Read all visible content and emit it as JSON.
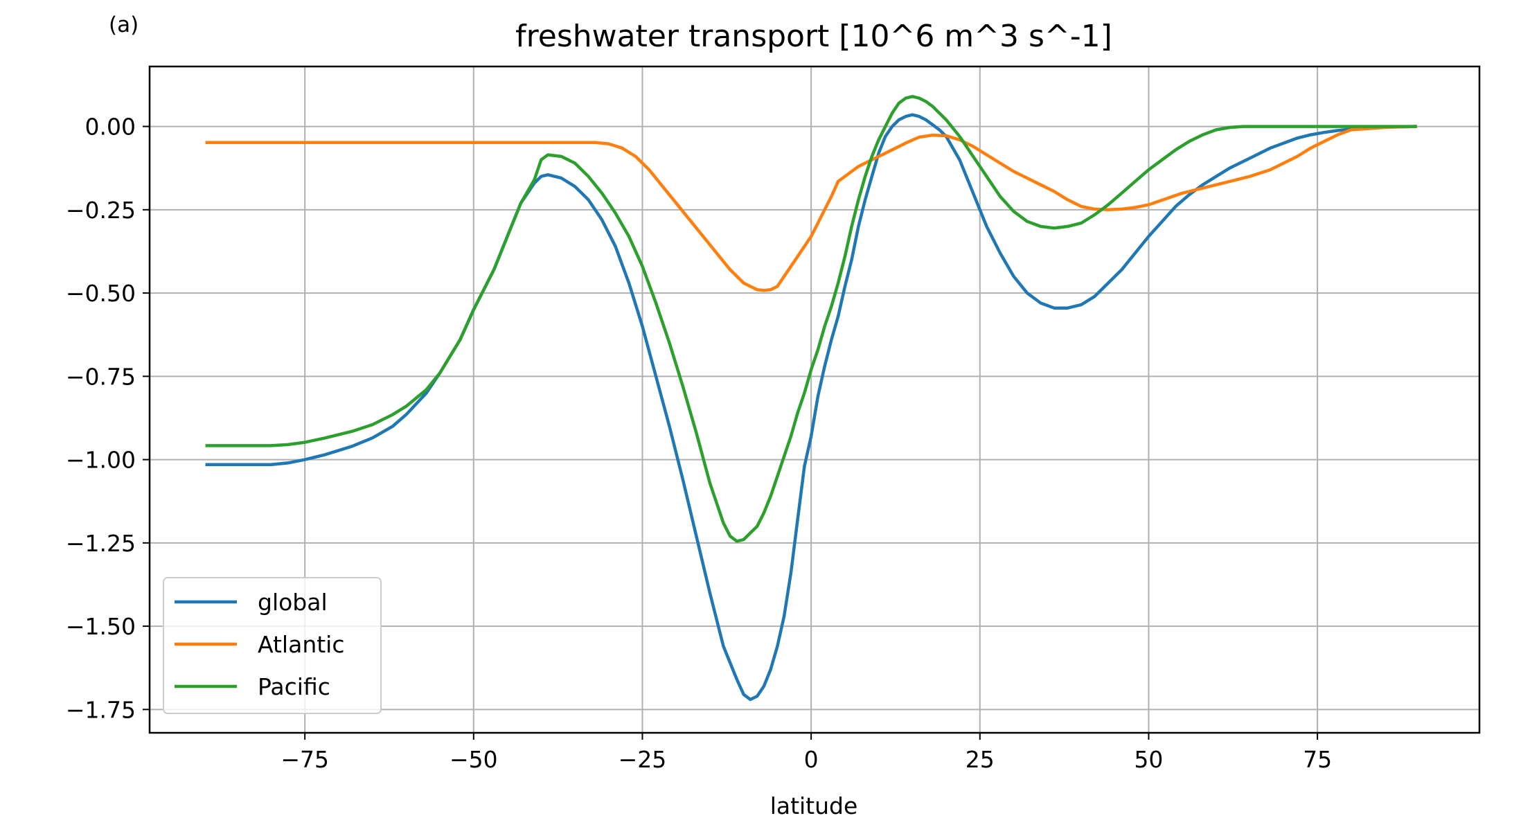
{
  "panel_label": "(a)",
  "chart_data": {
    "type": "line",
    "title": "freshwater transport [10^6 m^3 s^-1]",
    "xlabel": "latitude",
    "ylabel": "",
    "xlim": [
      -98,
      99
    ],
    "ylim": [
      -1.82,
      0.18
    ],
    "xticks": [
      -75,
      -50,
      -25,
      0,
      25,
      50,
      75
    ],
    "xtick_labels": [
      "−75",
      "−50",
      "−25",
      "0",
      "25",
      "50",
      "75"
    ],
    "yticks": [
      0.0,
      -0.25,
      -0.5,
      -0.75,
      -1.0,
      -1.25,
      -1.5,
      -1.75
    ],
    "ytick_labels": [
      "0.00",
      "−0.25",
      "−0.50",
      "−0.75",
      "−1.00",
      "−1.25",
      "−1.50",
      "−1.75"
    ],
    "grid": true,
    "legend_position": "lower-left",
    "series": [
      {
        "name": "global",
        "color": "#1f77b4",
        "x": [
          -89.5,
          -85,
          -80,
          -77.5,
          -75,
          -72,
          -68,
          -65,
          -62,
          -60,
          -57,
          -55,
          -52,
          -50,
          -47,
          -45,
          -43,
          -41,
          -40,
          -39,
          -37,
          -35,
          -33,
          -31,
          -29,
          -27,
          -25,
          -23,
          -21,
          -19,
          -17,
          -15,
          -13,
          -11,
          -10,
          -9,
          -8,
          -7,
          -6,
          -5,
          -4,
          -3,
          -2,
          -1,
          0,
          1,
          2,
          3,
          4,
          5,
          6,
          7,
          8,
          9,
          10,
          11,
          12,
          13,
          14,
          15,
          16,
          17,
          18,
          19,
          20,
          22,
          24,
          26,
          28,
          30,
          32,
          34,
          36,
          38,
          39,
          40,
          42,
          44,
          46,
          48,
          50,
          52,
          54,
          56,
          58,
          60,
          62,
          64,
          66,
          68,
          70,
          72,
          74,
          76,
          78,
          80,
          82,
          85,
          89.5
        ],
        "y": [
          -1.015,
          -1.015,
          -1.015,
          -1.01,
          -1.0,
          -0.985,
          -0.96,
          -0.935,
          -0.9,
          -0.865,
          -0.8,
          -0.74,
          -0.64,
          -0.55,
          -0.43,
          -0.33,
          -0.23,
          -0.17,
          -0.15,
          -0.145,
          -0.155,
          -0.18,
          -0.22,
          -0.28,
          -0.36,
          -0.47,
          -0.6,
          -0.75,
          -0.9,
          -1.06,
          -1.23,
          -1.4,
          -1.56,
          -1.66,
          -1.705,
          -1.72,
          -1.71,
          -1.68,
          -1.63,
          -1.56,
          -1.47,
          -1.34,
          -1.18,
          -1.02,
          -0.93,
          -0.81,
          -0.72,
          -0.64,
          -0.57,
          -0.48,
          -0.4,
          -0.3,
          -0.22,
          -0.15,
          -0.08,
          -0.03,
          0.0,
          0.02,
          0.03,
          0.035,
          0.03,
          0.02,
          0.005,
          -0.01,
          -0.03,
          -0.1,
          -0.2,
          -0.3,
          -0.38,
          -0.45,
          -0.5,
          -0.53,
          -0.545,
          -0.545,
          -0.54,
          -0.535,
          -0.51,
          -0.47,
          -0.43,
          -0.38,
          -0.33,
          -0.285,
          -0.24,
          -0.205,
          -0.175,
          -0.15,
          -0.125,
          -0.105,
          -0.085,
          -0.065,
          -0.05,
          -0.035,
          -0.025,
          -0.018,
          -0.012,
          -0.008,
          -0.005,
          -0.002,
          0.0
        ]
      },
      {
        "name": "Atlantic",
        "color": "#ff7f0e",
        "x": [
          -89.5,
          -80,
          -70,
          -60,
          -50,
          -40,
          -35,
          -32,
          -30,
          -28,
          -26,
          -24,
          -22,
          -20,
          -18,
          -16,
          -14,
          -12,
          -10,
          -9,
          -8,
          -7,
          -6,
          -5,
          -4,
          -3,
          -2,
          -1,
          0,
          1,
          2,
          3,
          4,
          5,
          6,
          7,
          8,
          10,
          12,
          14,
          16,
          18,
          20,
          22,
          24,
          26,
          28,
          30,
          32,
          34,
          36,
          38,
          40,
          42,
          44,
          46,
          48,
          50,
          55,
          60,
          65,
          68,
          70,
          72,
          74,
          76,
          78,
          80,
          85,
          89.5
        ],
        "y": [
          -0.048,
          -0.048,
          -0.048,
          -0.048,
          -0.048,
          -0.048,
          -0.048,
          -0.048,
          -0.052,
          -0.065,
          -0.09,
          -0.13,
          -0.18,
          -0.23,
          -0.28,
          -0.33,
          -0.38,
          -0.43,
          -0.47,
          -0.48,
          -0.49,
          -0.492,
          -0.49,
          -0.48,
          -0.45,
          -0.42,
          -0.39,
          -0.36,
          -0.33,
          -0.29,
          -0.25,
          -0.21,
          -0.165,
          -0.15,
          -0.135,
          -0.12,
          -0.11,
          -0.09,
          -0.07,
          -0.05,
          -0.032,
          -0.026,
          -0.028,
          -0.04,
          -0.06,
          -0.085,
          -0.11,
          -0.135,
          -0.155,
          -0.175,
          -0.195,
          -0.22,
          -0.24,
          -0.248,
          -0.25,
          -0.248,
          -0.243,
          -0.235,
          -0.2,
          -0.175,
          -0.15,
          -0.13,
          -0.11,
          -0.09,
          -0.065,
          -0.045,
          -0.025,
          -0.01,
          -0.003,
          0.0
        ]
      },
      {
        "name": "Pacific",
        "color": "#2ca02c",
        "x": [
          -89.5,
          -80,
          -77.5,
          -75,
          -72,
          -68,
          -65,
          -62,
          -60,
          -57,
          -55,
          -52,
          -50,
          -47,
          -45,
          -43,
          -41,
          -40,
          -39,
          -37,
          -35,
          -33,
          -31,
          -29,
          -27,
          -25,
          -23,
          -21,
          -19,
          -17,
          -15,
          -13,
          -12,
          -11,
          -10,
          -9,
          -8,
          -7,
          -6,
          -5,
          -4,
          -3,
          -2,
          -1,
          0,
          1,
          2,
          3,
          4,
          5,
          6,
          7,
          8,
          9,
          10,
          11,
          12,
          13,
          14,
          15,
          16,
          17,
          18,
          19,
          20,
          22,
          24,
          26,
          28,
          30,
          32,
          34,
          36,
          38,
          40,
          42,
          44,
          46,
          48,
          50,
          52,
          54,
          56,
          58,
          60,
          62,
          64,
          70,
          80,
          89.5
        ],
        "y": [
          -0.958,
          -0.958,
          -0.955,
          -0.948,
          -0.935,
          -0.915,
          -0.895,
          -0.865,
          -0.84,
          -0.79,
          -0.74,
          -0.64,
          -0.55,
          -0.43,
          -0.33,
          -0.23,
          -0.16,
          -0.1,
          -0.085,
          -0.09,
          -0.11,
          -0.15,
          -0.2,
          -0.26,
          -0.33,
          -0.42,
          -0.53,
          -0.65,
          -0.78,
          -0.92,
          -1.07,
          -1.19,
          -1.23,
          -1.245,
          -1.24,
          -1.22,
          -1.2,
          -1.16,
          -1.11,
          -1.05,
          -0.99,
          -0.93,
          -0.86,
          -0.8,
          -0.73,
          -0.67,
          -0.6,
          -0.54,
          -0.47,
          -0.39,
          -0.3,
          -0.22,
          -0.15,
          -0.09,
          -0.04,
          0.0,
          0.04,
          0.07,
          0.085,
          0.09,
          0.085,
          0.075,
          0.06,
          0.04,
          0.02,
          -0.03,
          -0.09,
          -0.15,
          -0.21,
          -0.255,
          -0.285,
          -0.3,
          -0.305,
          -0.3,
          -0.29,
          -0.265,
          -0.235,
          -0.2,
          -0.165,
          -0.13,
          -0.1,
          -0.07,
          -0.045,
          -0.025,
          -0.01,
          -0.003,
          0.0,
          0.0,
          0.0,
          0.0
        ]
      }
    ]
  }
}
